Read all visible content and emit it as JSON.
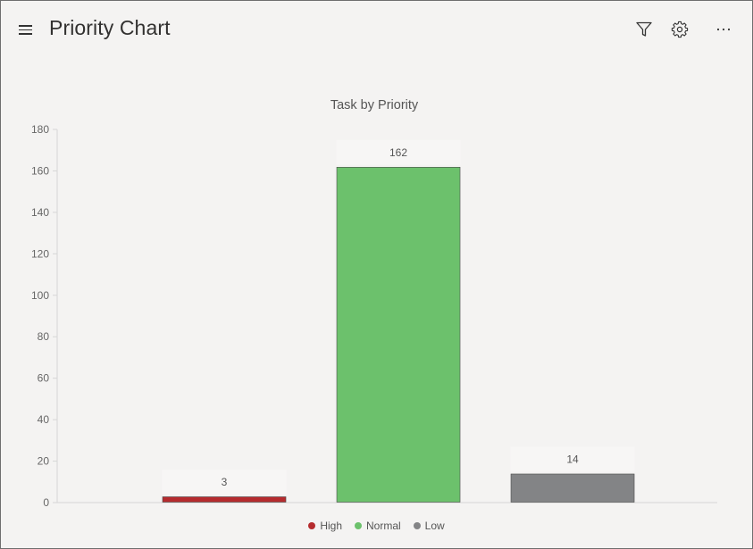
{
  "header": {
    "title": "Priority Chart",
    "icons": [
      "hamburger-menu-icon",
      "filter-icon",
      "gear-icon",
      "more-options-icon"
    ]
  },
  "chart_data": {
    "type": "bar",
    "title": "Task by Priority",
    "categories": [
      "High",
      "Normal",
      "Low"
    ],
    "values": [
      3,
      162,
      14
    ],
    "data_labels": [
      "3",
      "162",
      "14"
    ],
    "colors": [
      "#b52b2e",
      "#6cc16c",
      "#838486"
    ],
    "xlabel": "",
    "ylabel": "",
    "ylim": [
      0,
      180
    ],
    "yticks": [
      "0",
      "20",
      "40",
      "60",
      "80",
      "100",
      "120",
      "140",
      "160",
      "180"
    ],
    "grid": false,
    "legend": {
      "position": "bottom",
      "entries": [
        "High",
        "Normal",
        "Low"
      ]
    }
  }
}
